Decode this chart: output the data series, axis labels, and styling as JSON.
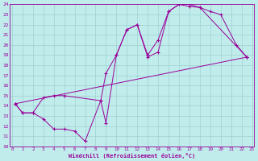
{
  "xlabel": "Windchill (Refroidissement éolien,°C)",
  "xlim": [
    0,
    23
  ],
  "ylim": [
    10,
    24
  ],
  "xticks": [
    0,
    1,
    2,
    3,
    4,
    5,
    6,
    7,
    8,
    9,
    10,
    11,
    12,
    13,
    14,
    15,
    16,
    17,
    18,
    19,
    20,
    21,
    22,
    23
  ],
  "yticks": [
    10,
    11,
    12,
    13,
    14,
    15,
    16,
    17,
    18,
    19,
    20,
    21,
    22,
    23,
    24
  ],
  "bg_color": "#c0ecec",
  "line_color": "#990099",
  "grid_color": "#a0d0d0",
  "line1": {
    "x": [
      0.3,
      1.0,
      2.0,
      3.0,
      4.0,
      5.0,
      8.5,
      9.0,
      10.0,
      11.0,
      12.0,
      13.0,
      14.0,
      15.0,
      16.0,
      17.0,
      18.0,
      19.0,
      20.0,
      21.5,
      22.5
    ],
    "y": [
      14.2,
      13.3,
      13.3,
      14.8,
      15.0,
      15.0,
      14.5,
      17.2,
      19.0,
      21.5,
      22.0,
      18.8,
      19.3,
      23.3,
      24.0,
      24.0,
      23.7,
      23.3,
      23.0,
      20.0,
      18.8
    ]
  },
  "line2": {
    "x": [
      0.3,
      1.0,
      2.0,
      3.0,
      4.0,
      5.0,
      6.0,
      7.0,
      8.5,
      9.0,
      10.0,
      11.0,
      12.0,
      13.0,
      14.0,
      15.0,
      16.0,
      17.0,
      18.0,
      22.5
    ],
    "y": [
      14.2,
      13.3,
      13.3,
      12.7,
      11.7,
      11.7,
      11.5,
      10.5,
      14.5,
      12.3,
      19.0,
      21.5,
      22.0,
      19.0,
      20.5,
      23.3,
      24.0,
      23.8,
      23.7,
      18.8
    ]
  },
  "line3": {
    "x": [
      0.3,
      22.5
    ],
    "y": [
      14.2,
      18.8
    ]
  }
}
